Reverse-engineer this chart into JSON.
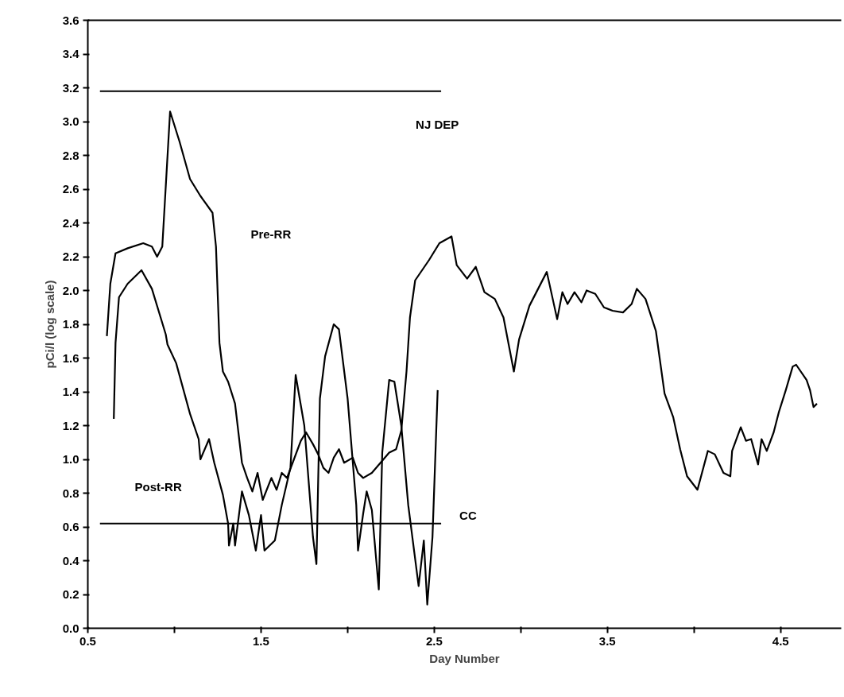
{
  "chart_data": {
    "type": "line",
    "xlabel": "Day Number",
    "ylabel": "pCi/l (log scale)",
    "xlim": [
      0.5,
      4.85
    ],
    "ylim": [
      0,
      3.6
    ],
    "xticks": [
      0.5,
      {
        "value": 1.0,
        "label": null
      },
      1.5,
      {
        "value": 2.0,
        "label": null
      },
      2.5,
      {
        "value": 3.0,
        "label": null
      },
      3.5,
      {
        "value": 4.0,
        "label": null
      },
      4.5
    ],
    "yticks": [
      {
        "value": 0,
        "label": "0.0"
      },
      0.2,
      0.4,
      0.6,
      0.8,
      {
        "value": 1,
        "label": "1.0"
      },
      1.2,
      1.4,
      1.6,
      1.8,
      {
        "value": 2,
        "label": "2.0"
      },
      2.2,
      2.4,
      2.6,
      2.8,
      {
        "value": 3,
        "label": "3.0"
      },
      3.2,
      3.4,
      3.6
    ],
    "grid": false,
    "legend": false,
    "line_style": "solid",
    "marker": "none",
    "series": [
      {
        "name": "Pre-RR",
        "color": "#000000",
        "x": [
          0.61,
          0.63,
          0.66,
          0.73,
          0.82,
          0.87,
          0.9,
          0.93,
          0.975,
          1.03,
          1.09,
          1.15,
          1.22,
          1.24,
          1.26,
          1.28,
          1.31,
          1.35,
          1.39,
          1.42,
          1.45,
          1.48,
          1.51,
          1.56,
          1.59,
          1.62,
          1.65,
          1.69,
          1.73,
          1.76,
          1.8,
          1.83,
          1.86,
          1.89,
          1.92,
          1.95,
          1.98,
          2.03,
          2.06,
          2.09,
          2.14,
          2.19,
          2.24,
          2.28,
          2.31,
          2.34,
          2.36,
          2.39,
          2.47,
          2.53,
          2.6,
          2.63,
          2.69,
          2.74,
          2.79,
          2.85,
          2.9,
          2.93,
          2.96,
          2.99,
          3.05,
          3.1,
          3.15,
          3.21,
          3.24,
          3.27,
          3.31,
          3.35,
          3.38,
          3.43,
          3.48,
          3.53,
          3.59,
          3.64,
          3.67,
          3.72,
          3.78,
          3.83,
          3.88,
          3.92,
          3.96,
          4.02,
          4.08,
          4.12,
          4.17,
          4.21,
          4.22,
          4.27,
          4.3,
          4.33,
          4.37,
          4.39,
          4.42,
          4.46,
          4.49,
          4.53,
          4.57,
          4.59,
          4.65,
          4.67,
          4.69,
          4.71
        ],
        "values": [
          1.73,
          2.04,
          2.22,
          2.25,
          2.28,
          2.26,
          2.2,
          2.26,
          3.06,
          2.88,
          2.66,
          2.56,
          2.46,
          2.26,
          1.69,
          1.52,
          1.46,
          1.33,
          0.98,
          0.89,
          0.81,
          0.92,
          0.76,
          0.89,
          0.82,
          0.92,
          0.89,
          1.0,
          1.11,
          1.16,
          1.09,
          1.03,
          0.95,
          0.92,
          1.01,
          1.06,
          0.98,
          1.01,
          0.92,
          0.89,
          0.92,
          0.98,
          1.04,
          1.06,
          1.17,
          1.52,
          1.84,
          2.06,
          2.18,
          2.28,
          2.32,
          2.15,
          2.07,
          2.14,
          1.99,
          1.95,
          1.84,
          1.68,
          1.52,
          1.71,
          1.91,
          2.01,
          2.11,
          1.83,
          1.99,
          1.92,
          1.99,
          1.93,
          2.0,
          1.98,
          1.9,
          1.88,
          1.87,
          1.92,
          2.01,
          1.95,
          1.76,
          1.39,
          1.25,
          1.06,
          0.9,
          0.82,
          1.05,
          1.03,
          0.92,
          0.9,
          1.05,
          1.19,
          1.11,
          1.12,
          0.97,
          1.12,
          1.05,
          1.16,
          1.28,
          1.41,
          1.55,
          1.56,
          1.47,
          1.41,
          1.31,
          1.33
        ]
      },
      {
        "name": "Post-RR",
        "color": "#000000",
        "x": [
          0.65,
          0.66,
          0.68,
          0.73,
          0.81,
          0.87,
          0.95,
          0.96,
          1.01,
          1.09,
          1.14,
          1.15,
          1.2,
          1.23,
          1.28,
          1.31,
          1.315,
          1.34,
          1.35,
          1.39,
          1.43,
          1.47,
          1.5,
          1.52,
          1.58,
          1.62,
          1.67,
          1.7,
          1.75,
          1.8,
          1.82,
          1.84,
          1.87,
          1.92,
          1.95,
          2.0,
          2.05,
          2.06,
          2.09,
          2.11,
          2.14,
          2.18,
          2.2,
          2.24,
          2.27,
          2.31,
          2.35,
          2.41,
          2.44,
          2.46,
          2.49,
          2.52
        ],
        "values": [
          1.24,
          1.69,
          1.96,
          2.04,
          2.12,
          2.01,
          1.74,
          1.68,
          1.57,
          1.27,
          1.12,
          1.0,
          1.12,
          0.98,
          0.79,
          0.62,
          0.49,
          0.62,
          0.49,
          0.81,
          0.67,
          0.46,
          0.67,
          0.46,
          0.52,
          0.73,
          0.95,
          1.5,
          1.2,
          0.54,
          0.38,
          1.36,
          1.61,
          1.8,
          1.77,
          1.36,
          0.73,
          0.46,
          0.68,
          0.81,
          0.7,
          0.23,
          1.04,
          1.47,
          1.46,
          1.2,
          0.73,
          0.25,
          0.52,
          0.14,
          0.54,
          1.41
        ]
      },
      {
        "name": "NJ DEP",
        "color": "#000000",
        "x": [
          0.57,
          2.54
        ],
        "values": [
          3.18,
          3.18
        ]
      },
      {
        "name": "CC",
        "color": "#000000",
        "x": [
          0.57,
          2.54
        ],
        "values": [
          0.62,
          0.62
        ]
      }
    ]
  }
}
